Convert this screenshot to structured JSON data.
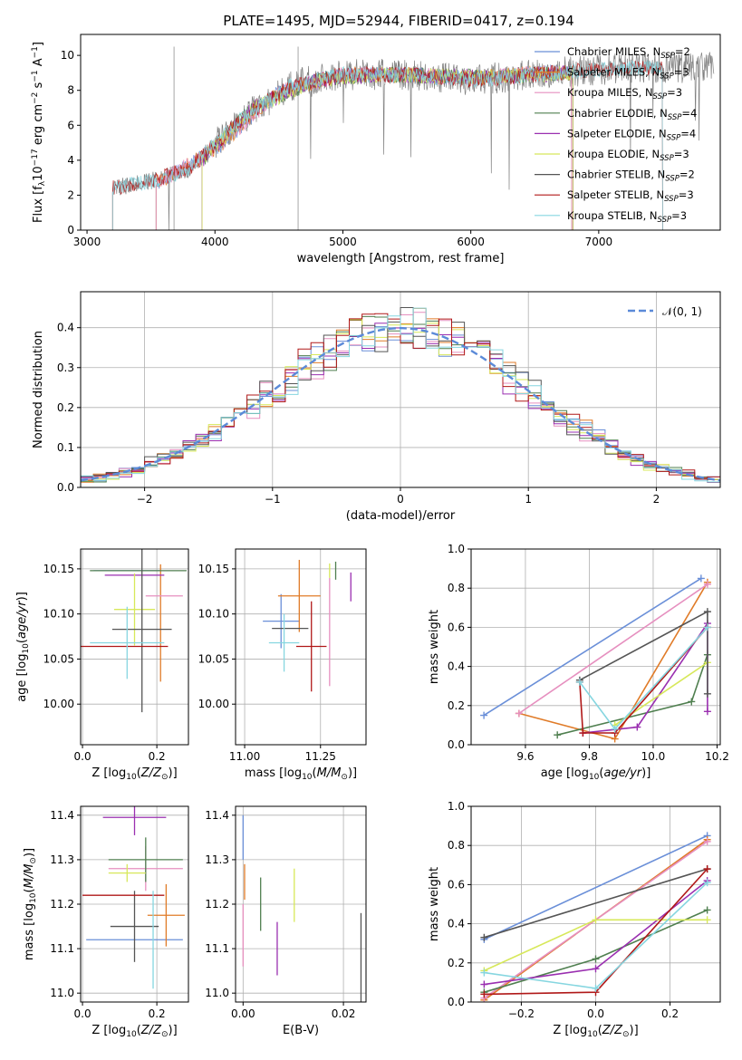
{
  "figure_title": "PLATE=1495, MJD=52944, FIBERID=0417, z=0.194",
  "colors": [
    "#6a8fd8",
    "#e07b28",
    "#e68fbf",
    "#4f7f4f",
    "#9a2fb0",
    "#d7e85a",
    "#555555",
    "#b01818",
    "#86d6e0"
  ],
  "chart_data": [
    {
      "type": "line",
      "title": "PLATE=1495, MJD=52944, FIBERID=0417, z=0.194",
      "xlabel": "wavelength [Angstrom, rest frame]",
      "ylabel": "Flux [f_λ 10^-17 erg cm^-2 s^-1 A^-1]",
      "xlim": [
        2950,
        7950
      ],
      "ylim": [
        0,
        11.2
      ],
      "xticks": [
        "3000",
        "4000",
        "5000",
        "6000",
        "7000"
      ],
      "yticks": [
        "0",
        "2",
        "4",
        "6",
        "8",
        "10"
      ],
      "legend": "top-right",
      "series": [
        {
          "name": "Chabrier MILES, N_SSP=2",
          "x": [
            3540,
            4000,
            4500,
            5000,
            5500,
            6000,
            6500,
            6790
          ],
          "values": [
            2.7,
            4.6,
            7.9,
            8.9,
            8.9,
            8.7,
            9.0,
            9.0
          ]
        },
        {
          "name": "Salpeter MILES, N_SSP=3",
          "x": [
            3540,
            4000,
            4500,
            5000,
            5500,
            6000,
            6500,
            6790
          ],
          "values": [
            2.7,
            4.6,
            7.9,
            8.9,
            8.9,
            8.7,
            9.0,
            9.0
          ]
        },
        {
          "name": "Kroupa MILES, N_SSP=3",
          "x": [
            3540,
            4000,
            4500,
            5000,
            5500,
            6000,
            6500,
            6790
          ],
          "values": [
            2.7,
            4.6,
            7.9,
            8.9,
            8.9,
            8.7,
            9.0,
            9.0
          ]
        },
        {
          "name": "Chabrier ELODIE, N_SSP=4",
          "x": [
            3900,
            4300,
            4800,
            5300,
            5800,
            6300,
            6800
          ],
          "values": [
            4.0,
            7.0,
            8.6,
            8.9,
            8.8,
            8.8,
            9.0
          ]
        },
        {
          "name": "Salpeter ELODIE, N_SSP=4",
          "x": [
            3900,
            4300,
            4800,
            5300,
            5800,
            6300,
            6800
          ],
          "values": [
            4.0,
            7.0,
            8.6,
            8.9,
            8.8,
            8.8,
            9.0
          ]
        },
        {
          "name": "Kroupa ELODIE, N_SSP=3",
          "x": [
            3900,
            4300,
            4800,
            5300,
            5800,
            6300,
            6800
          ],
          "values": [
            4.0,
            7.0,
            8.6,
            8.9,
            8.8,
            8.8,
            9.0
          ]
        },
        {
          "name": "Chabrier STELIB, N_SSP=2",
          "x": [
            3200,
            3500,
            3800,
            4200,
            4600,
            5000,
            5500,
            6000,
            6500,
            7000,
            7500
          ],
          "values": [
            2.4,
            2.8,
            3.5,
            6.3,
            8.3,
            8.9,
            8.9,
            8.6,
            8.9,
            9.2,
            9.3
          ]
        },
        {
          "name": "Salpeter STELIB, N_SSP=3",
          "x": [
            3200,
            3500,
            3800,
            4200,
            4600,
            5000,
            5500,
            6000,
            6500,
            7000,
            7500
          ],
          "values": [
            2.4,
            2.8,
            3.5,
            6.3,
            8.3,
            8.9,
            8.9,
            8.6,
            8.9,
            9.2,
            9.3
          ]
        },
        {
          "name": "Kroupa STELIB, N_SSP=3",
          "x": [
            3200,
            3500,
            3800,
            4200,
            4600,
            5000,
            5500,
            6000,
            6500,
            7000,
            7500
          ],
          "values": [
            2.4,
            2.8,
            3.5,
            6.3,
            8.3,
            8.9,
            8.9,
            8.6,
            8.9,
            9.2,
            9.3
          ]
        }
      ]
    },
    {
      "type": "bar",
      "xlabel": "(data-model)/error",
      "ylabel": "Normed distribution",
      "xlim": [
        -2.5,
        2.5
      ],
      "ylim": [
        0,
        0.49
      ],
      "xticks": [
        "−2",
        "−1",
        "0",
        "1",
        "2"
      ],
      "yticks": [
        "0.0",
        "0.1",
        "0.2",
        "0.3",
        "0.4"
      ],
      "grid": true,
      "legend": "top-right",
      "legend_label": "𝒩(0, 1)",
      "bin_width": 0.1
    },
    {
      "type": "scatter",
      "xlabel": "Z [log10(Z/Z⊙)]",
      "ylabel": "age  [log10(age/yr)]",
      "xlim": [
        -0.005,
        0.285
      ],
      "ylim": [
        9.955,
        10.172
      ],
      "xticks": [
        "0.0",
        "0.2"
      ],
      "yticks": [
        "10.00",
        "10.05",
        "10.10",
        "10.15"
      ],
      "grid": true,
      "points": [
        {
          "x": 0.12,
          "xerr": 0.09,
          "y": 10.148,
          "yerr": 0.0
        },
        {
          "x": 0.21,
          "xerr": 0.0,
          "y": 10.09,
          "yerr": 0.065
        },
        {
          "x": 0.22,
          "xerr": 0.05,
          "y": 10.12,
          "yerr": 0.0
        },
        {
          "x": 0.15,
          "xerr": 0.13,
          "y": 10.148,
          "yerr": 0.0
        },
        {
          "x": 0.14,
          "xerr": 0.08,
          "y": 10.143,
          "yerr": 0.0
        },
        {
          "x": 0.14,
          "xerr": 0.055,
          "y": 10.105,
          "yerr": 0.04
        },
        {
          "x": 0.16,
          "xerr": 0.08,
          "y": 10.083,
          "yerr": 0.092
        },
        {
          "x": 0.1,
          "xerr": 0.13,
          "y": 10.064,
          "yerr": 0.0
        },
        {
          "x": 0.12,
          "xerr": 0.1,
          "y": 10.068,
          "yerr": 0.04
        }
      ]
    },
    {
      "type": "scatter",
      "xlabel": "mass [log10(M/M⊙)]",
      "ylabel": "",
      "xlim": [
        10.97,
        11.4
      ],
      "ylim": [
        9.955,
        10.172
      ],
      "xticks": [
        "11.00",
        "11.25"
      ],
      "yticks": [
        "10.00",
        "10.05",
        "10.10",
        "10.15"
      ],
      "grid": true,
      "points": [
        {
          "x": 11.12,
          "xerr": 0.06,
          "y": 10.092,
          "yerr": 0.03
        },
        {
          "x": 11.18,
          "xerr": 0.07,
          "y": 10.12,
          "yerr": 0.04
        },
        {
          "x": 11.28,
          "xerr": 0.0,
          "y": 10.08,
          "yerr": 0.06
        },
        {
          "x": 11.3,
          "xerr": 0.0,
          "y": 10.148,
          "yerr": 0.01
        },
        {
          "x": 11.35,
          "xerr": 0.0,
          "y": 10.13,
          "yerr": 0.016
        },
        {
          "x": 11.28,
          "xerr": 0.0,
          "y": 10.148,
          "yerr": 0.008
        },
        {
          "x": 11.15,
          "xerr": 0.06,
          "y": 10.084,
          "yerr": 0.0
        },
        {
          "x": 11.22,
          "xerr": 0.05,
          "y": 10.064,
          "yerr": 0.05
        },
        {
          "x": 11.13,
          "xerr": 0.05,
          "y": 10.068,
          "yerr": 0.032
        }
      ]
    },
    {
      "type": "line",
      "xlabel": "age  [log10(age/yr)]",
      "ylabel": "mass weight",
      "xlim": [
        9.43,
        10.21
      ],
      "ylim": [
        0,
        1.0
      ],
      "xticks": [
        "9.6",
        "9.8",
        "10.0",
        "10.2"
      ],
      "yticks": [
        "0.0",
        "0.2",
        "0.4",
        "0.6",
        "0.8",
        "1.0"
      ],
      "grid": true,
      "series": [
        {
          "x": [
            9.47,
            10.15
          ],
          "values": [
            0.15,
            0.85
          ]
        },
        {
          "x": [
            9.58,
            9.88,
            10.17
          ],
          "values": [
            0.16,
            0.03,
            0.83
          ]
        },
        {
          "x": [
            9.58,
            10.17
          ],
          "values": [
            0.16,
            0.82
          ]
        },
        {
          "x": [
            9.7,
            10.12,
            10.17
          ],
          "values": [
            0.05,
            0.22,
            0.46
          ]
        },
        {
          "x": [
            9.78,
            9.95,
            10.17,
            10.17
          ],
          "values": [
            0.06,
            0.09,
            0.62,
            0.17
          ]
        },
        {
          "x": [
            9.88,
            10.17
          ],
          "values": [
            0.1,
            0.42
          ]
        },
        {
          "x": [
            9.77,
            10.17,
            10.17
          ],
          "values": [
            0.33,
            0.68,
            0.26
          ]
        },
        {
          "x": [
            9.77,
            9.78,
            9.88,
            10.17
          ],
          "values": [
            0.32,
            0.06,
            0.06,
            0.6
          ]
        },
        {
          "x": [
            9.77,
            9.88,
            10.17
          ],
          "values": [
            0.32,
            0.08,
            0.6
          ]
        }
      ]
    },
    {
      "type": "scatter",
      "xlabel": "Z [log10(Z/Z⊙)]",
      "ylabel": "mass [log10(M/M⊙)]",
      "xlim": [
        -0.005,
        0.285
      ],
      "ylim": [
        10.98,
        11.42
      ],
      "xticks": [
        "0.0",
        "0.2"
      ],
      "yticks": [
        "11.0",
        "11.1",
        "11.2",
        "11.3",
        "11.4"
      ],
      "grid": true,
      "points": [
        {
          "x": 0.14,
          "xerr": 0.13,
          "y": 11.12,
          "yerr": 0.0
        },
        {
          "x": 0.225,
          "xerr": 0.05,
          "y": 11.175,
          "yerr": 0.07
        },
        {
          "x": 0.17,
          "xerr": 0.1,
          "y": 11.28,
          "yerr": 0.05
        },
        {
          "x": 0.17,
          "xerr": 0.1,
          "y": 11.3,
          "yerr": 0.05
        },
        {
          "x": 0.14,
          "xerr": 0.085,
          "y": 11.395,
          "yerr": 0.04
        },
        {
          "x": 0.12,
          "xerr": 0.05,
          "y": 11.27,
          "yerr": 0.02
        },
        {
          "x": 0.14,
          "xerr": 0.065,
          "y": 11.15,
          "yerr": 0.08
        },
        {
          "x": 0.11,
          "xerr": 0.11,
          "y": 11.22,
          "yerr": 0.0
        },
        {
          "x": 0.19,
          "xerr": 0.0,
          "y": 11.12,
          "yerr": 0.11
        }
      ]
    },
    {
      "type": "scatter",
      "xlabel": "E(B-V)",
      "ylabel": "",
      "xlim": [
        -0.0015,
        0.0245
      ],
      "ylim": [
        10.98,
        11.42
      ],
      "xticks": [
        "0.00",
        "0.02"
      ],
      "yticks": [
        "11.0",
        "11.1",
        "11.2",
        "11.3",
        "11.4"
      ],
      "grid": true,
      "points": [
        {
          "x": 0.0,
          "xerr": 0.0,
          "y": 11.35,
          "yerr": 0.05
        },
        {
          "x": 0.0003,
          "xerr": 0.0,
          "y": 11.25,
          "yerr": 0.04
        },
        {
          "x": 0.0,
          "xerr": 0.0,
          "y": 11.13,
          "yerr": 0.07
        },
        {
          "x": 0.0035,
          "xerr": 0.0,
          "y": 11.2,
          "yerr": 0.06
        },
        {
          "x": 0.0068,
          "xerr": 0.0,
          "y": 11.1,
          "yerr": 0.06
        },
        {
          "x": 0.0102,
          "xerr": 0.0,
          "y": 11.22,
          "yerr": 0.06
        },
        {
          "x": 0.0235,
          "xerr": 0.0,
          "y": 11.08,
          "yerr": 0.1
        }
      ]
    },
    {
      "type": "line",
      "xlabel": "Z [log10(Z/Z⊙)]",
      "ylabel": "mass weight",
      "xlim": [
        -0.335,
        0.335
      ],
      "ylim": [
        0,
        1.0
      ],
      "xticks": [
        "−0.2",
        "0.0",
        "0.2"
      ],
      "yticks": [
        "0.0",
        "0.2",
        "0.4",
        "0.6",
        "0.8",
        "1.0"
      ],
      "grid": true,
      "series": [
        {
          "x": [
            -0.3,
            0.3
          ],
          "values": [
            0.32,
            0.85
          ]
        },
        {
          "x": [
            -0.3,
            0.3
          ],
          "values": [
            0.01,
            0.83
          ]
        },
        {
          "x": [
            -0.3,
            0.3
          ],
          "values": [
            0.02,
            0.82
          ]
        },
        {
          "x": [
            -0.3,
            0.0,
            0.3
          ],
          "values": [
            0.05,
            0.22,
            0.47
          ]
        },
        {
          "x": [
            -0.3,
            0.0,
            0.3
          ],
          "values": [
            0.09,
            0.17,
            0.62
          ]
        },
        {
          "x": [
            -0.3,
            0.0,
            0.3
          ],
          "values": [
            0.16,
            0.42,
            0.42
          ]
        },
        {
          "x": [
            -0.3,
            0.3
          ],
          "values": [
            0.33,
            0.68
          ]
        },
        {
          "x": [
            -0.3,
            0.0,
            0.3
          ],
          "values": [
            0.04,
            0.05,
            0.68
          ]
        },
        {
          "x": [
            -0.3,
            0.0,
            0.3
          ],
          "values": [
            0.15,
            0.07,
            0.61
          ]
        }
      ]
    }
  ]
}
